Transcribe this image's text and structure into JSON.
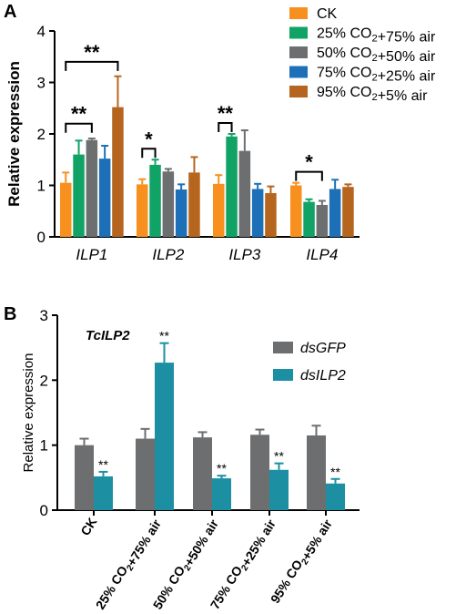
{
  "figure": {
    "panel_a_letter": "A",
    "panel_b_letter": "B"
  },
  "chart_data": [
    {
      "type": "bar",
      "panel": "A",
      "title": "",
      "xlabel": "",
      "ylabel": "Relative expression",
      "ylim": [
        0,
        4
      ],
      "yticks": [
        "0",
        "1",
        "2",
        "3",
        "4"
      ],
      "categories": [
        "ILP1",
        "ILP2",
        "ILP3",
        "ILP4"
      ],
      "series": [
        {
          "name": "CK",
          "color": "#F7901E",
          "values": [
            1.05,
            1.02,
            1.03,
            1.0
          ],
          "errors": [
            0.2,
            0.1,
            0.17,
            0.05
          ]
        },
        {
          "name": "25% CO₂+75% air",
          "color": "#11A366",
          "values": [
            1.6,
            1.4,
            1.95,
            0.68
          ],
          "errors": [
            0.27,
            0.1,
            0.05,
            0.05
          ]
        },
        {
          "name": "50% CO₂+50% air",
          "color": "#6D6E70",
          "values": [
            1.88,
            1.27,
            1.67,
            0.62
          ],
          "errors": [
            0.03,
            0.05,
            0.4,
            0.08
          ]
        },
        {
          "name": "75% CO₂+25% air",
          "color": "#1D70B7",
          "values": [
            1.52,
            0.92,
            0.93,
            0.93
          ],
          "errors": [
            0.25,
            0.1,
            0.1,
            0.18
          ]
        },
        {
          "name": "95% CO₂+5% air",
          "color": "#B5651D",
          "values": [
            2.52,
            1.25,
            0.85,
            0.97
          ],
          "errors": [
            0.6,
            0.3,
            0.13,
            0.05
          ]
        }
      ],
      "grid": false,
      "legend_position": "top-right",
      "annotations": [
        {
          "label": "**",
          "category": "ILP1",
          "from_series": 0,
          "to_series": 4
        },
        {
          "label": "**",
          "category": "ILP1",
          "from_series": 0,
          "to_series": 2
        },
        {
          "label": "*",
          "category": "ILP2",
          "from_series": 0,
          "to_series": 1
        },
        {
          "label": "**",
          "category": "ILP3",
          "from_series": 0,
          "to_series": 1
        },
        {
          "label": "*",
          "category": "ILP4",
          "from_series": 0,
          "to_series": 2
        }
      ]
    },
    {
      "type": "bar",
      "panel": "B",
      "title": "TcILP2",
      "xlabel": "",
      "ylabel": "Relative expression",
      "ylim": [
        0,
        3
      ],
      "yticks": [
        "0",
        "1",
        "2",
        "3"
      ],
      "categories": [
        "CK",
        "25% CO₂+75% air",
        "50% CO₂+50% air",
        "75% CO₂+25% air",
        "95% CO₂+5% air"
      ],
      "series": [
        {
          "name": "dsGFP",
          "color": "#6D6E70",
          "values": [
            1.0,
            1.1,
            1.12,
            1.16,
            1.15
          ],
          "errors": [
            0.1,
            0.15,
            0.08,
            0.08,
            0.15
          ],
          "labels": [
            "",
            "",
            "",
            "",
            ""
          ]
        },
        {
          "name": "dsILP2",
          "color": "#1C8FA3",
          "values": [
            0.52,
            2.27,
            0.49,
            0.62,
            0.41
          ],
          "errors": [
            0.07,
            0.3,
            0.04,
            0.1,
            0.07
          ],
          "labels": [
            "**",
            "**",
            "**",
            "**",
            "**"
          ]
        }
      ],
      "grid": false,
      "legend_position": "top-right"
    }
  ]
}
